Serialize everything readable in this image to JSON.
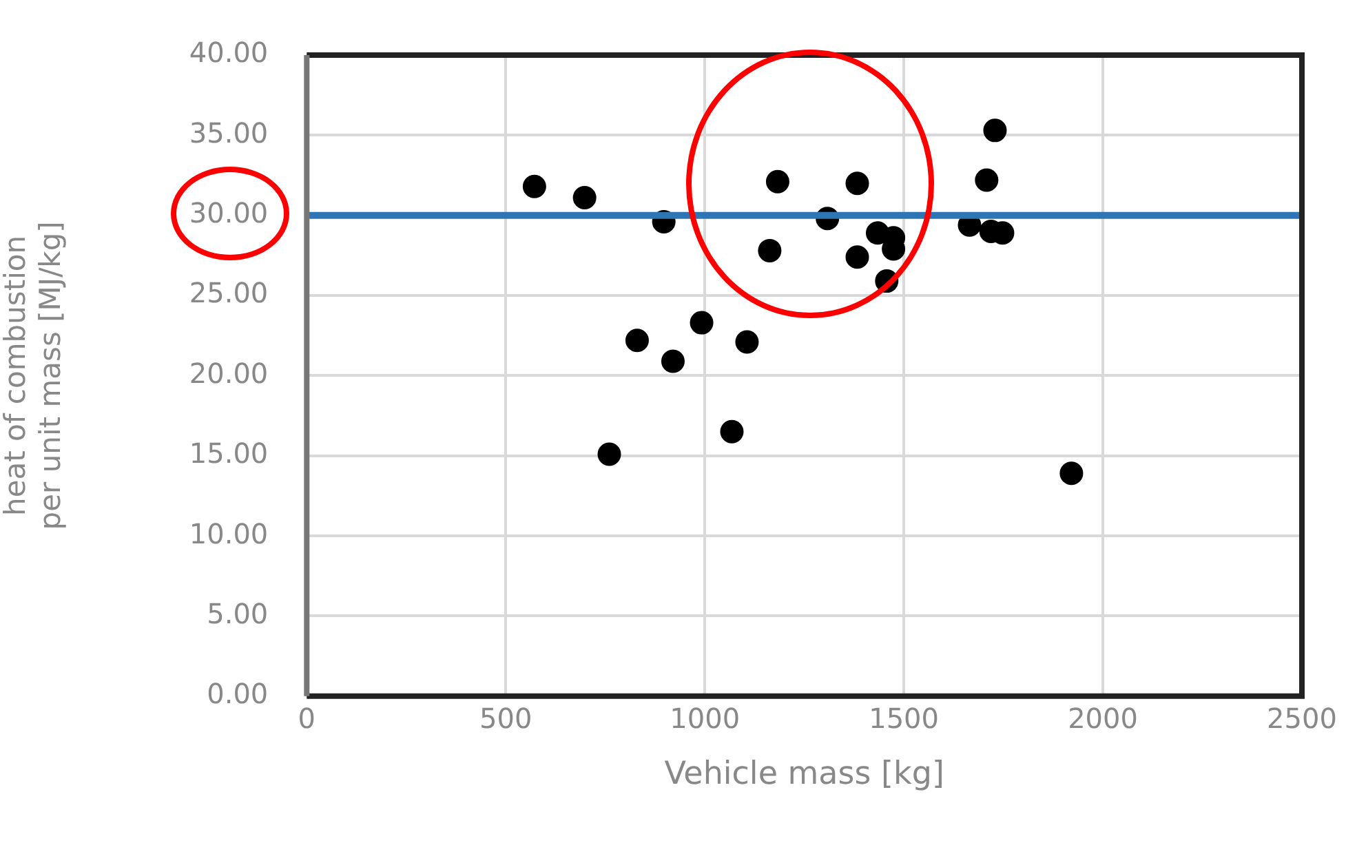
{
  "chart_data": {
    "type": "scatter",
    "xlabel": "Vehicle mass [kg]",
    "ylabel": "heat of combustion per unit mass [MJ/kg]",
    "x": [
      572,
      698,
      897,
      1183,
      1163,
      992,
      830,
      920,
      1106,
      1068,
      760,
      1383,
      1308,
      1383,
      1434,
      1474,
      1474,
      1457,
      1665,
      1719,
      1748,
      1708,
      1729,
      1921
    ],
    "values": [
      31.8,
      31.1,
      29.6,
      32.1,
      27.8,
      23.3,
      22.2,
      20.9,
      22.1,
      16.5,
      15.1,
      32.0,
      29.8,
      27.4,
      28.9,
      28.6,
      27.9,
      25.9,
      29.4,
      29.0,
      28.9,
      32.2,
      35.3,
      13.9
    ],
    "color": "#000000",
    "marker": "circle",
    "xlim": [
      0,
      2500
    ],
    "xticks": [
      0,
      500,
      1000,
      1500,
      2000,
      2500
    ],
    "ylim": [
      0,
      40
    ],
    "yticks": [
      {
        "value": 0,
        "label": "0.00"
      },
      {
        "value": 5,
        "label": "5.00"
      },
      {
        "value": 10,
        "label": "10.00"
      },
      {
        "value": 15,
        "label": "15.00"
      },
      {
        "value": 20,
        "label": "20.00"
      },
      {
        "value": 25,
        "label": "25.00"
      },
      {
        "value": 30,
        "label": "30.00"
      },
      {
        "value": 35,
        "label": "35.00"
      },
      {
        "value": 40,
        "label": "40.00"
      }
    ],
    "grid": true,
    "ref_lines": [
      {
        "axis": "y",
        "value": 30,
        "color": "#2e75b6"
      }
    ]
  }
}
